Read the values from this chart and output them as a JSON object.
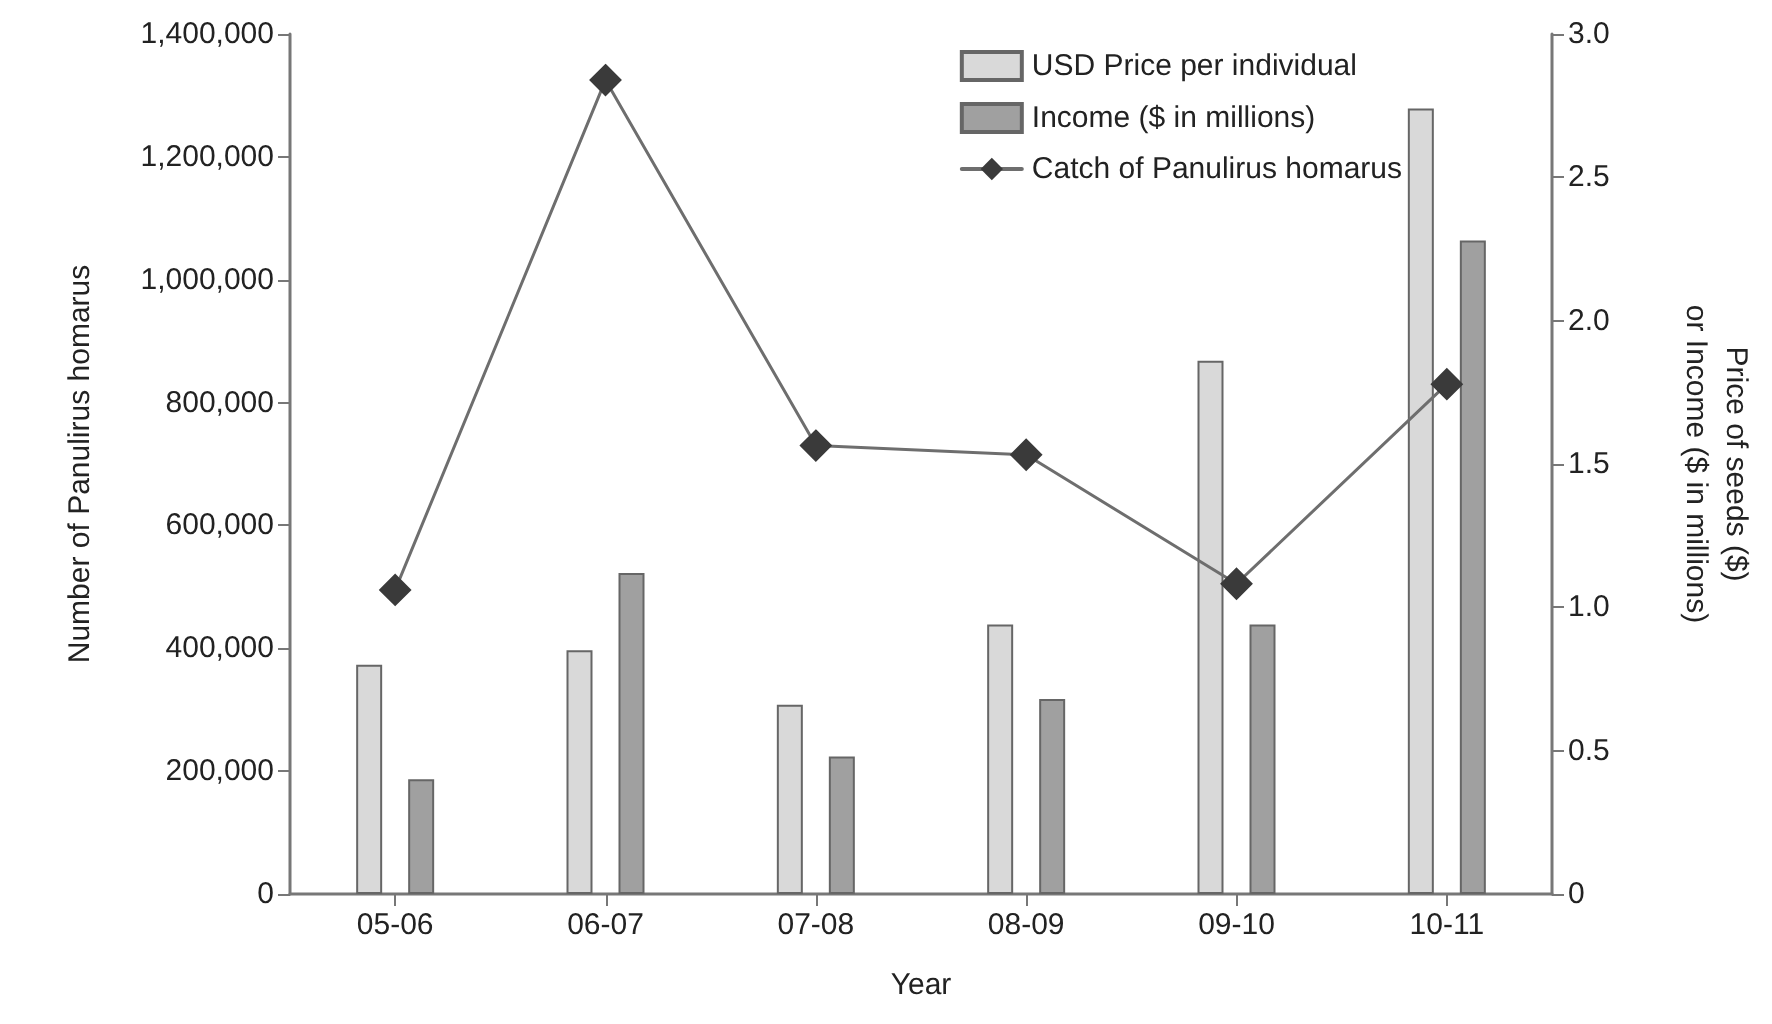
{
  "chart_data": {
    "type": "bar",
    "xlabel": "Year",
    "ylabel": "Number of Panulirus homarus",
    "y2label": "Price of seeds ($)\nor Income ($ in millions)",
    "categories": [
      "05-06",
      "06-07",
      "07-08",
      "08-09",
      "09-10",
      "10-11"
    ],
    "series": [
      {
        "name": "USD Price per individual",
        "color": "#d9d9d9",
        "axis": "y2",
        "values": [
          0.8,
          0.85,
          0.66,
          0.94,
          1.86,
          2.74
        ]
      },
      {
        "name": "Income ($ in millions)",
        "color": "#a0a0a0",
        "axis": "y2",
        "values": [
          0.4,
          1.12,
          0.48,
          0.68,
          0.94,
          2.28
        ]
      },
      {
        "name": "Catch of Panulirus homarus",
        "type": "line",
        "color": "#6e6e6e",
        "marker": "diamond",
        "values": [
          495000,
          1325000,
          730000,
          715000,
          505000,
          830000
        ]
      }
    ],
    "ylim": [
      0,
      1400000
    ],
    "yticks": [
      0,
      {
        "value": 200000,
        "label": "200,000"
      },
      {
        "value": 400000,
        "label": "400,000"
      },
      {
        "value": 600000,
        "label": "600,000"
      },
      {
        "value": 800000,
        "label": "800,000"
      },
      {
        "value": 1000000,
        "label": "1,000,000"
      },
      {
        "value": 1200000,
        "label": "1,200,000"
      },
      {
        "value": 1400000,
        "label": "1,400,000"
      }
    ],
    "y2lim": [
      0,
      3.0
    ],
    "y2ticks": [
      {
        "value": 0,
        "label": "0"
      },
      0.5,
      {
        "value": 1,
        "label": "1.0"
      },
      1.5,
      {
        "value": 2,
        "label": "2.0"
      },
      2.5,
      {
        "value": 3,
        "label": "3.0"
      }
    ],
    "grid": false,
    "legend": "top right"
  }
}
